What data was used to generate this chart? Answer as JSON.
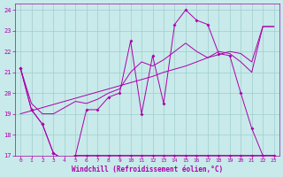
{
  "background_color": "#c8eaea",
  "grid_color": "#a0cccc",
  "line_color": "#aa00aa",
  "xlabel": "Windchill (Refroidissement éolien,°C)",
  "xlim": [
    -0.5,
    23.5
  ],
  "ylim": [
    17,
    24.3
  ],
  "yticks": [
    17,
    18,
    19,
    20,
    21,
    22,
    23,
    24
  ],
  "xticks": [
    0,
    1,
    2,
    3,
    4,
    5,
    6,
    7,
    8,
    9,
    10,
    11,
    12,
    13,
    14,
    15,
    16,
    17,
    18,
    19,
    20,
    21,
    22,
    23
  ],
  "jagged1_x": [
    0,
    1,
    2,
    3,
    4,
    5,
    6,
    7,
    8,
    9,
    10,
    11,
    12,
    13,
    14,
    15,
    16,
    17,
    18,
    19,
    20,
    21,
    22,
    23
  ],
  "jagged1_y": [
    21.2,
    19.2,
    18.5,
    17.1,
    16.8,
    17.0,
    19.2,
    19.2,
    19.8,
    20.0,
    22.5,
    19.0,
    21.8,
    19.5,
    23.3,
    24.0,
    23.5,
    23.3,
    21.9,
    21.8,
    20.0,
    18.3,
    17.0,
    17.0
  ],
  "jagged2_x": [
    0,
    1,
    2,
    3,
    4,
    5,
    6,
    7,
    8,
    9,
    10,
    11,
    12,
    13,
    14,
    15,
    16,
    17,
    18,
    19,
    20,
    21,
    22,
    23
  ],
  "jagged2_y": [
    21.2,
    19.2,
    18.5,
    17.1,
    16.8,
    17.0,
    17.0,
    17.0,
    17.0,
    17.0,
    17.0,
    17.0,
    17.0,
    17.0,
    17.0,
    17.0,
    17.0,
    17.0,
    17.0,
    17.0,
    17.0,
    17.0,
    17.0,
    17.0
  ],
  "smooth1_x": [
    0,
    1,
    2,
    3,
    4,
    5,
    6,
    7,
    8,
    9,
    10,
    11,
    12,
    13,
    14,
    15,
    16,
    17,
    18,
    19,
    20,
    21,
    22,
    23
  ],
  "smooth1_y": [
    19.0,
    19.15,
    19.3,
    19.45,
    19.6,
    19.75,
    19.9,
    20.05,
    20.2,
    20.35,
    20.5,
    20.65,
    20.8,
    21.0,
    21.15,
    21.3,
    21.5,
    21.7,
    21.85,
    22.0,
    21.9,
    21.5,
    23.2,
    23.2
  ],
  "smooth2_x": [
    0,
    1,
    2,
    3,
    4,
    5,
    6,
    7,
    8,
    9,
    10,
    11,
    12,
    13,
    14,
    15,
    16,
    17,
    18,
    19,
    20,
    21,
    22,
    23
  ],
  "smooth2_y": [
    21.2,
    19.5,
    19.0,
    19.0,
    19.3,
    19.6,
    19.5,
    19.7,
    20.0,
    20.2,
    21.0,
    21.5,
    21.3,
    21.6,
    22.0,
    22.4,
    22.0,
    21.7,
    22.0,
    21.9,
    21.5,
    21.0,
    23.2,
    23.2
  ]
}
